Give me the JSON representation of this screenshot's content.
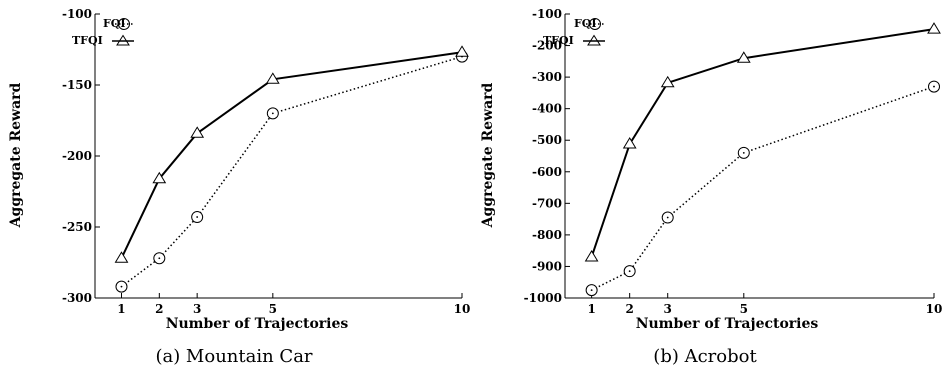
{
  "chart_data": [
    {
      "type": "line",
      "caption": "(a) Mountain Car",
      "xlabel": "Number of Trajectories",
      "ylabel": "Aggregate Reward",
      "x": [
        1,
        2,
        3,
        5,
        10
      ],
      "xticks": [
        1,
        2,
        3,
        5,
        10
      ],
      "xlim": [
        0.3,
        10
      ],
      "ylim": [
        -300,
        -100
      ],
      "yticks": [
        -300,
        -250,
        -200,
        -150,
        -100
      ],
      "legend_position": "top-left",
      "series": [
        {
          "name": "FQI",
          "marker": "circle",
          "line": "dotted",
          "values": [
            -292,
            -272,
            -243,
            -170,
            -130
          ]
        },
        {
          "name": "TFQI",
          "marker": "triangle",
          "line": "solid",
          "values": [
            -272,
            -216,
            -184,
            -146,
            -127
          ]
        }
      ]
    },
    {
      "type": "line",
      "caption": "(b) Acrobot",
      "xlabel": "Number of Trajectories",
      "ylabel": "Aggregate Reward",
      "x": [
        1,
        2,
        3,
        5,
        10
      ],
      "xticks": [
        1,
        2,
        3,
        5,
        10
      ],
      "xlim": [
        0.3,
        10
      ],
      "ylim": [
        -1000,
        -100
      ],
      "yticks": [
        -1000,
        -900,
        -800,
        -700,
        -600,
        -500,
        -400,
        -300,
        -200,
        -100
      ],
      "legend_position": "top-left",
      "series": [
        {
          "name": "FQI",
          "marker": "circle",
          "line": "dotted",
          "values": [
            -975,
            -915,
            -745,
            -540,
            -330
          ]
        },
        {
          "name": "TFQI",
          "marker": "triangle",
          "line": "solid",
          "values": [
            -870,
            -512,
            -318,
            -240,
            -148
          ]
        }
      ]
    }
  ]
}
